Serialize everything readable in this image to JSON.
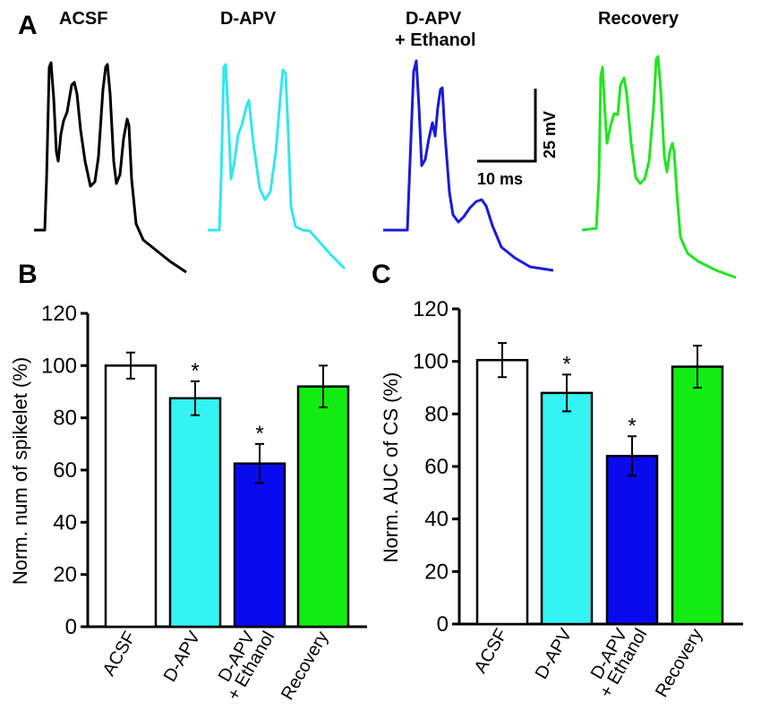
{
  "panels": {
    "a_letter": "A",
    "b_letter": "B",
    "c_letter": "C"
  },
  "traces": {
    "labels": [
      "ACSF",
      "D-APV",
      "D-APV",
      "+ Ethanol",
      "Recovery"
    ],
    "colors": [
      "#000000",
      "#33e6ef",
      "#1a1ad8",
      "#22e422"
    ],
    "scale_bar": {
      "time_label": "10 ms",
      "voltage_label": "25 mV",
      "time_ms": 10,
      "voltage_mv": 25
    }
  },
  "chart_data": [
    {
      "type": "bar",
      "panel": "B",
      "categories": [
        "ACSF",
        "D-APV",
        "D-APV + Ethanol",
        "Recovery"
      ],
      "category_lines": [
        [
          "ACSF"
        ],
        [
          "D-APV"
        ],
        [
          "D-APV",
          "+ Ethanol"
        ],
        [
          "Recovery"
        ]
      ],
      "values": [
        100,
        87.5,
        62.5,
        92
      ],
      "errors": [
        5,
        6.5,
        7.5,
        8
      ],
      "significance": [
        "",
        "*",
        "*",
        ""
      ],
      "colors": [
        "#ffffff",
        "#33f3f3",
        "#0a0aee",
        "#12ec12"
      ],
      "ylabel": "Norm. num of spikelet (%)",
      "ylim": [
        0,
        120
      ],
      "yticks": [
        0,
        20,
        40,
        60,
        80,
        100,
        120
      ]
    },
    {
      "type": "bar",
      "panel": "C",
      "categories": [
        "ACSF",
        "D-APV",
        "D-APV + Ethanol",
        "Recovery"
      ],
      "category_lines": [
        [
          "ACSF"
        ],
        [
          "D-APV"
        ],
        [
          "D-APV",
          "+ Ethanol"
        ],
        [
          "Recovery"
        ]
      ],
      "values": [
        100.5,
        88,
        64,
        98
      ],
      "errors": [
        6.5,
        7,
        7.5,
        8
      ],
      "significance": [
        "",
        "*",
        "*",
        ""
      ],
      "colors": [
        "#ffffff",
        "#33f3f3",
        "#0a0aee",
        "#12ec12"
      ],
      "ylabel": "Norm. AUC of CS (%)",
      "ylim": [
        0,
        120
      ],
      "yticks": [
        0,
        20,
        40,
        60,
        80,
        100,
        120
      ]
    }
  ]
}
